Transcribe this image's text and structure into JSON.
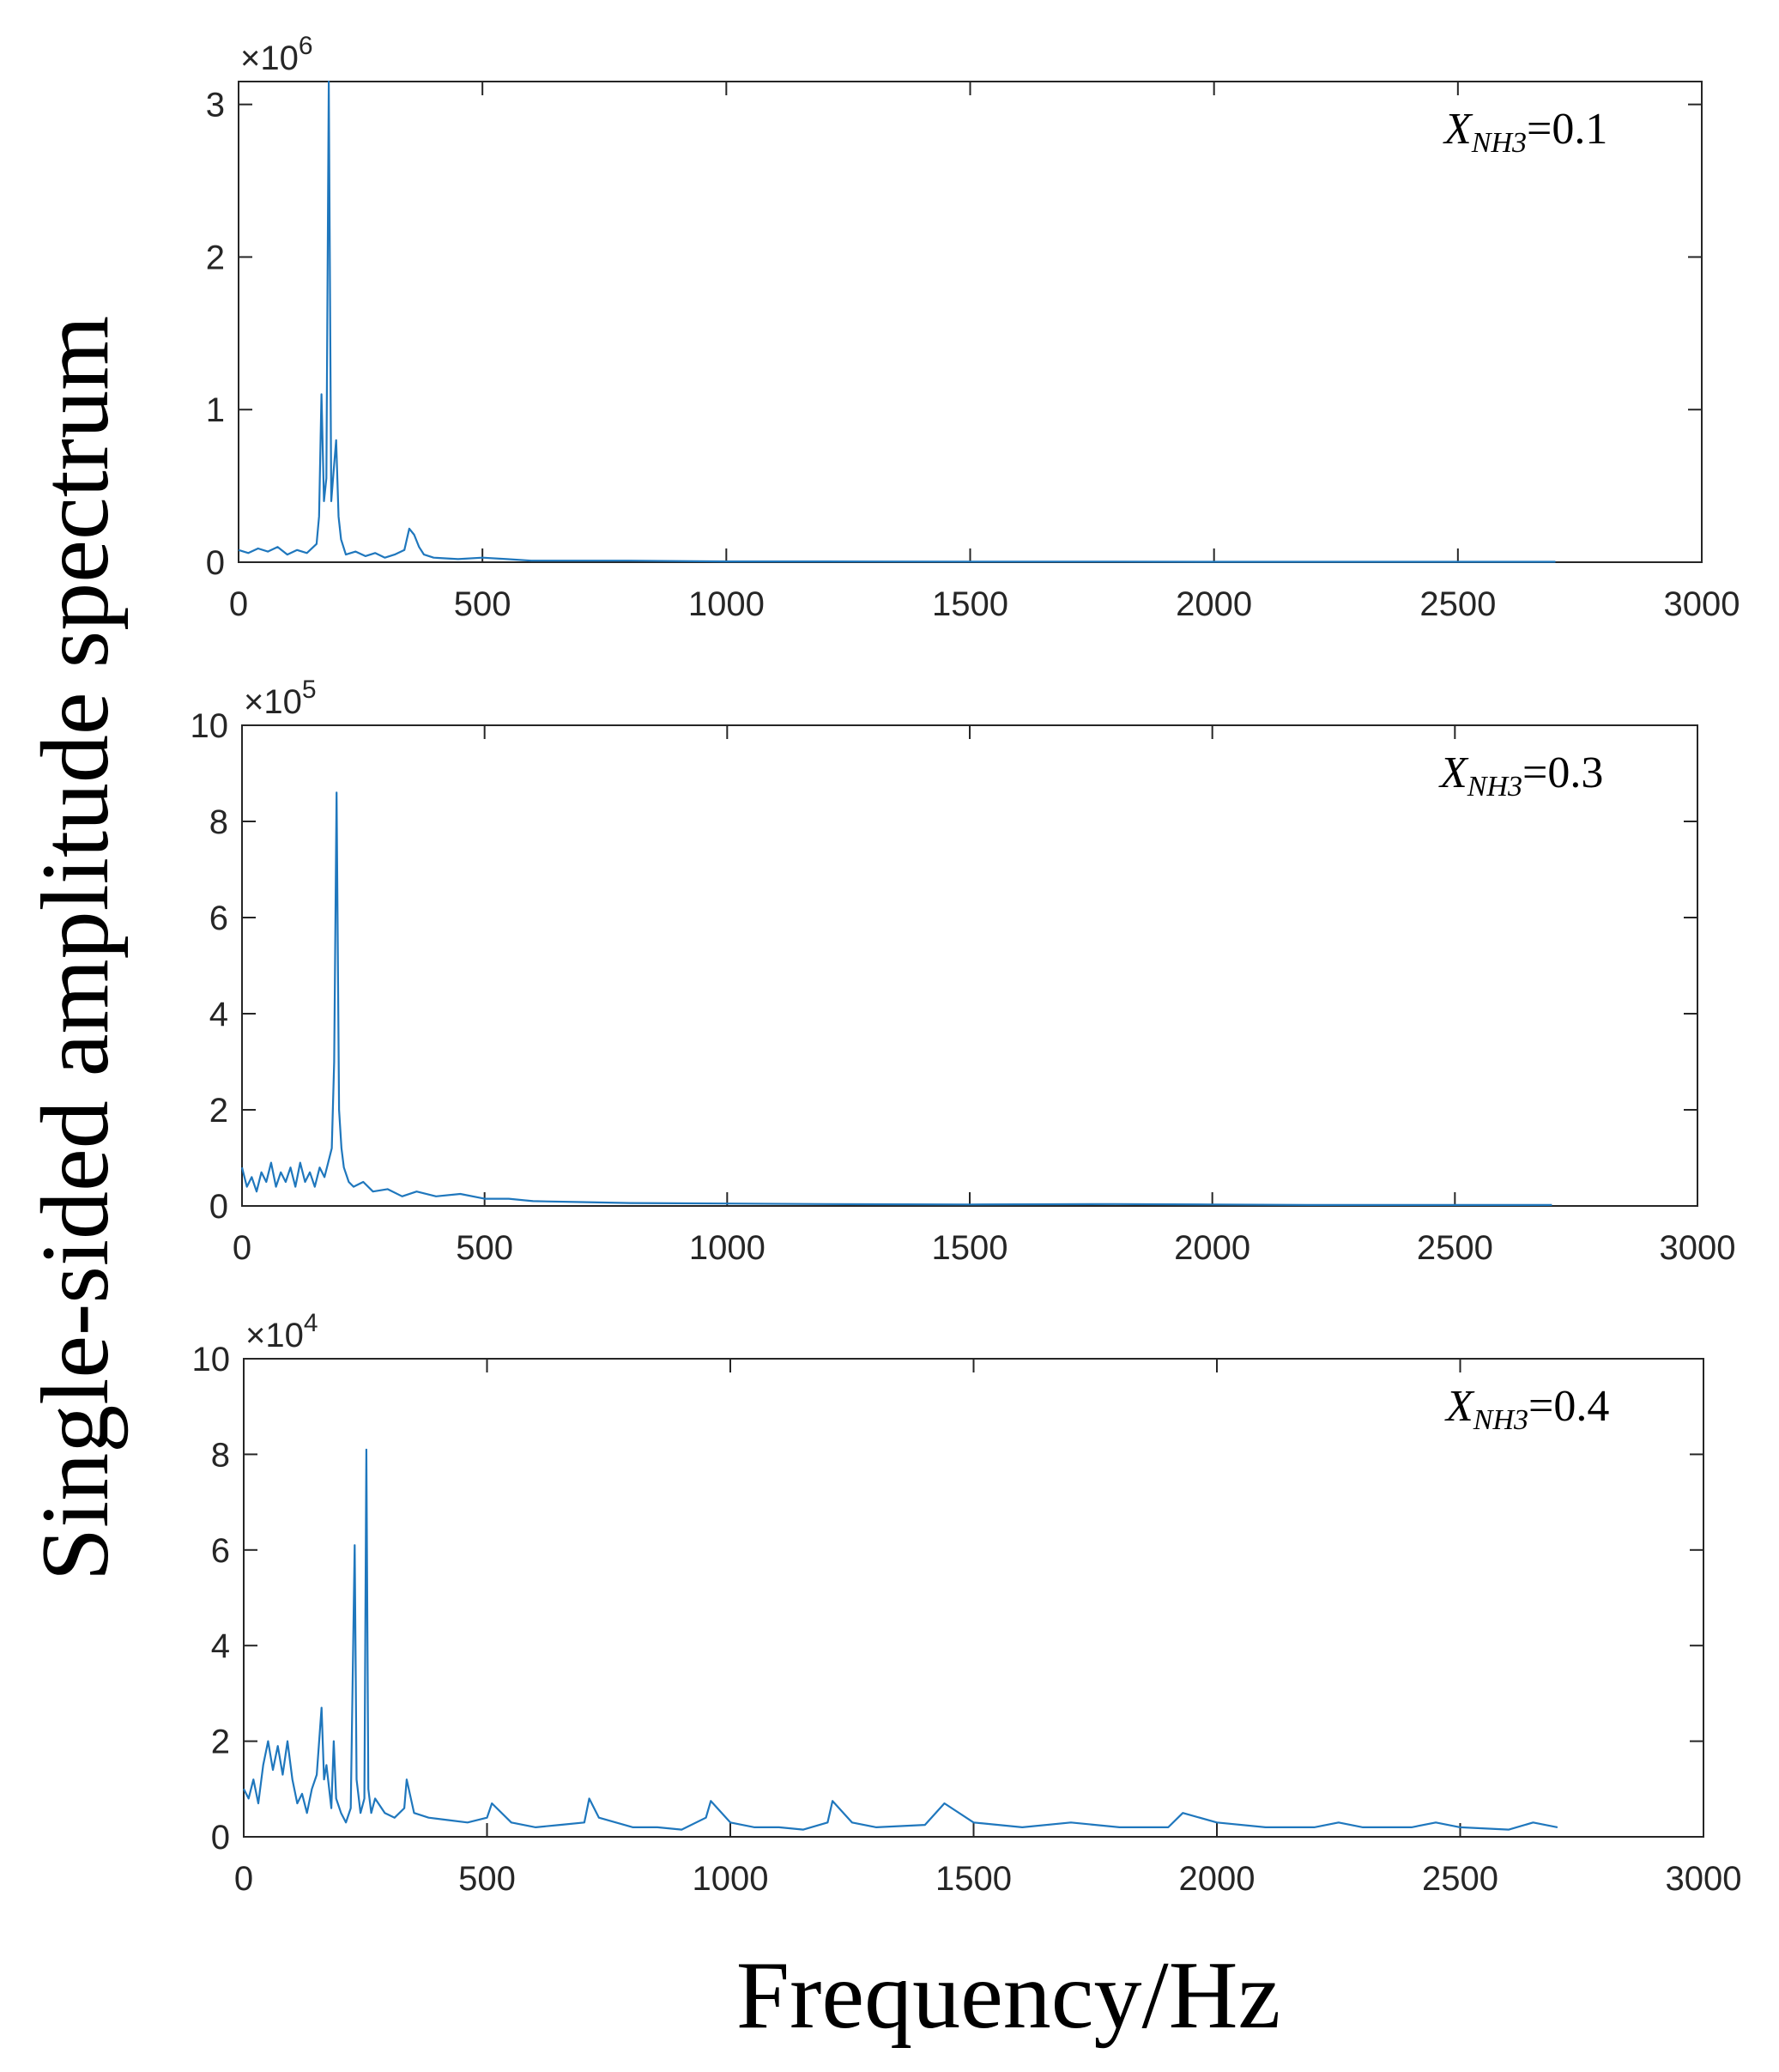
{
  "figure": {
    "ylabel": "Single-sided amplitude spectrum",
    "xlabel": "Frequency/Hz",
    "line_color": "#1f77bd",
    "axis_color": "#262626"
  },
  "chart_data": [
    {
      "type": "line",
      "title": "",
      "annotation": {
        "var": "X",
        "sub": "NH3",
        "value": "=0.1"
      },
      "exponent": {
        "prefix": "×10",
        "power": "6"
      },
      "xlim": [
        0,
        3000
      ],
      "ylim": [
        0,
        3.15
      ],
      "xticks": [
        0,
        500,
        1000,
        1500,
        2000,
        2500,
        3000
      ],
      "xticklabels": [
        "0",
        "500",
        "1000",
        "1500",
        "2000",
        "2500",
        "3000"
      ],
      "yticks": [
        0,
        1,
        2,
        3
      ],
      "yticklabels": [
        "0",
        "1",
        "2",
        "3"
      ],
      "grid": false,
      "series": [
        {
          "name": "X_NH3=0.1",
          "x": [
            0,
            20,
            40,
            60,
            80,
            100,
            120,
            140,
            160,
            165,
            170,
            175,
            180,
            185,
            190,
            195,
            200,
            205,
            210,
            220,
            240,
            260,
            280,
            300,
            320,
            340,
            350,
            360,
            370,
            380,
            400,
            450,
            500,
            550,
            600,
            700,
            800,
            1000,
            1200,
            1500,
            1800,
            2000,
            2200,
            2500,
            2700
          ],
          "values": [
            0.08,
            0.06,
            0.09,
            0.07,
            0.1,
            0.05,
            0.08,
            0.06,
            0.12,
            0.3,
            1.1,
            0.4,
            0.55,
            3.15,
            0.4,
            0.6,
            0.8,
            0.3,
            0.15,
            0.05,
            0.07,
            0.04,
            0.06,
            0.03,
            0.05,
            0.08,
            0.22,
            0.18,
            0.1,
            0.05,
            0.03,
            0.02,
            0.03,
            0.02,
            0.01,
            0.01,
            0.01,
            0.005,
            0.005,
            0.004,
            0.004,
            0.003,
            0.003,
            0.003,
            0.003
          ]
        }
      ]
    },
    {
      "type": "line",
      "title": "",
      "annotation": {
        "var": "X",
        "sub": "NH3",
        "value": "=0.3"
      },
      "exponent": {
        "prefix": "×10",
        "power": "5"
      },
      "xlim": [
        0,
        3000
      ],
      "ylim": [
        0,
        10
      ],
      "xticks": [
        0,
        500,
        1000,
        1500,
        2000,
        2500,
        3000
      ],
      "xticklabels": [
        "0",
        "500",
        "1000",
        "1500",
        "2000",
        "2500",
        "3000"
      ],
      "yticks": [
        0,
        2,
        4,
        6,
        8,
        10
      ],
      "yticklabels": [
        "0",
        "2",
        "4",
        "6",
        "8",
        "10"
      ],
      "grid": false,
      "series": [
        {
          "name": "X_NH3=0.3",
          "x": [
            0,
            10,
            20,
            30,
            40,
            50,
            60,
            70,
            80,
            90,
            100,
            110,
            120,
            130,
            140,
            150,
            160,
            170,
            180,
            185,
            190,
            195,
            200,
            205,
            210,
            220,
            230,
            250,
            270,
            300,
            330,
            360,
            400,
            450,
            500,
            550,
            600,
            700,
            800,
            1000,
            1200,
            1500,
            1800,
            2000,
            2200,
            2500,
            2700
          ],
          "values": [
            0.8,
            0.4,
            0.6,
            0.3,
            0.7,
            0.5,
            0.9,
            0.4,
            0.7,
            0.5,
            0.8,
            0.4,
            0.9,
            0.5,
            0.7,
            0.4,
            0.8,
            0.6,
            1.0,
            1.2,
            3.0,
            8.6,
            2.0,
            1.2,
            0.8,
            0.5,
            0.4,
            0.5,
            0.3,
            0.35,
            0.2,
            0.3,
            0.2,
            0.25,
            0.15,
            0.15,
            0.1,
            0.08,
            0.06,
            0.05,
            0.04,
            0.03,
            0.04,
            0.03,
            0.02,
            0.02,
            0.02
          ]
        }
      ]
    },
    {
      "type": "line",
      "title": "",
      "annotation": {
        "var": "X",
        "sub": "NH3",
        "value": "=0.4"
      },
      "exponent": {
        "prefix": "×10",
        "power": "4"
      },
      "xlim": [
        0,
        3000
      ],
      "ylim": [
        0,
        10
      ],
      "xticks": [
        0,
        500,
        1000,
        1500,
        2000,
        2500,
        3000
      ],
      "xticklabels": [
        "0",
        "500",
        "1000",
        "1500",
        "2000",
        "2500",
        "3000"
      ],
      "yticks": [
        0,
        2,
        4,
        6,
        8,
        10
      ],
      "yticklabels": [
        "0",
        "2",
        "4",
        "6",
        "8",
        "10"
      ],
      "grid": false,
      "series": [
        {
          "name": "X_NH3=0.4",
          "x": [
            0,
            10,
            20,
            30,
            40,
            50,
            60,
            70,
            80,
            90,
            100,
            110,
            120,
            130,
            140,
            150,
            160,
            165,
            170,
            180,
            185,
            190,
            200,
            210,
            220,
            228,
            232,
            240,
            248,
            252,
            256,
            262,
            270,
            290,
            310,
            330,
            335,
            350,
            380,
            420,
            460,
            500,
            510,
            550,
            600,
            650,
            700,
            710,
            730,
            800,
            850,
            900,
            950,
            960,
            1000,
            1050,
            1100,
            1150,
            1200,
            1210,
            1250,
            1300,
            1400,
            1440,
            1500,
            1600,
            1700,
            1800,
            1900,
            1930,
            2000,
            2100,
            2200,
            2250,
            2300,
            2400,
            2450,
            2500,
            2600,
            2650,
            2700
          ],
          "values": [
            1.0,
            0.8,
            1.2,
            0.7,
            1.5,
            2.0,
            1.4,
            1.9,
            1.3,
            2.0,
            1.2,
            0.7,
            0.9,
            0.5,
            1.0,
            1.3,
            2.7,
            1.2,
            1.5,
            0.6,
            2.0,
            0.8,
            0.5,
            0.3,
            0.6,
            6.1,
            1.2,
            0.5,
            0.8,
            8.1,
            1.0,
            0.5,
            0.8,
            0.5,
            0.4,
            0.6,
            1.2,
            0.5,
            0.4,
            0.35,
            0.3,
            0.4,
            0.7,
            0.3,
            0.2,
            0.25,
            0.3,
            0.8,
            0.4,
            0.2,
            0.2,
            0.15,
            0.4,
            0.75,
            0.3,
            0.2,
            0.2,
            0.15,
            0.3,
            0.75,
            0.3,
            0.2,
            0.25,
            0.7,
            0.3,
            0.2,
            0.3,
            0.2,
            0.2,
            0.5,
            0.3,
            0.2,
            0.2,
            0.3,
            0.2,
            0.2,
            0.3,
            0.2,
            0.15,
            0.3,
            0.2
          ]
        }
      ]
    }
  ]
}
